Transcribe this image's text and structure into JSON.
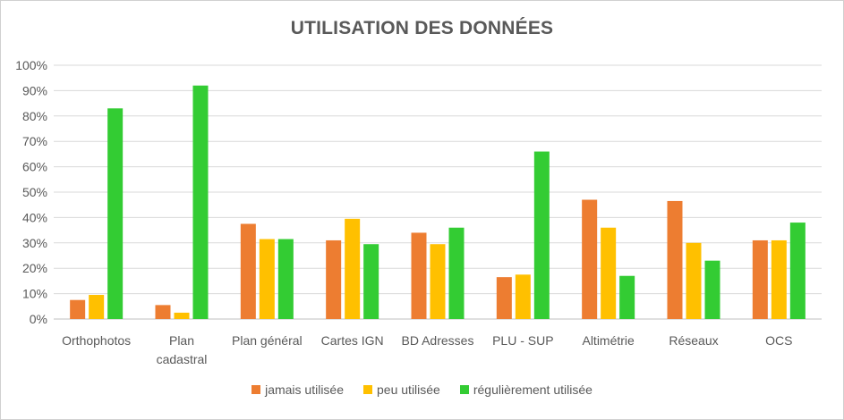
{
  "chart_data": {
    "type": "bar",
    "title": "UTILISATION DES DONNÉES",
    "categories": [
      [
        "Orthophotos"
      ],
      [
        "Plan",
        "cadastral"
      ],
      [
        "Plan général"
      ],
      [
        "Cartes IGN"
      ],
      [
        "BD Adresses"
      ],
      [
        "PLU - SUP"
      ],
      [
        "Altimétrie"
      ],
      [
        "Réseaux"
      ],
      [
        "OCS"
      ]
    ],
    "series": [
      {
        "name": "jamais utilisée",
        "color": "#ED7D31",
        "values": [
          7.5,
          5.5,
          37.5,
          31,
          34,
          16.5,
          47,
          46.5,
          31
        ]
      },
      {
        "name": "peu utilisée",
        "color": "#FFC000",
        "values": [
          9.5,
          2.5,
          31.5,
          39.5,
          29.5,
          17.5,
          36,
          30,
          31
        ]
      },
      {
        "name": "régulièrement utilisée",
        "color": "#33CC33",
        "values": [
          83,
          92,
          31.5,
          29.5,
          36,
          66,
          17,
          23,
          38
        ]
      }
    ],
    "ylim": [
      0,
      100
    ],
    "yticks": [
      "0%",
      "10%",
      "20%",
      "30%",
      "40%",
      "50%",
      "60%",
      "70%",
      "80%",
      "90%",
      "100%"
    ],
    "grid": true,
    "legend_position": "bottom"
  }
}
